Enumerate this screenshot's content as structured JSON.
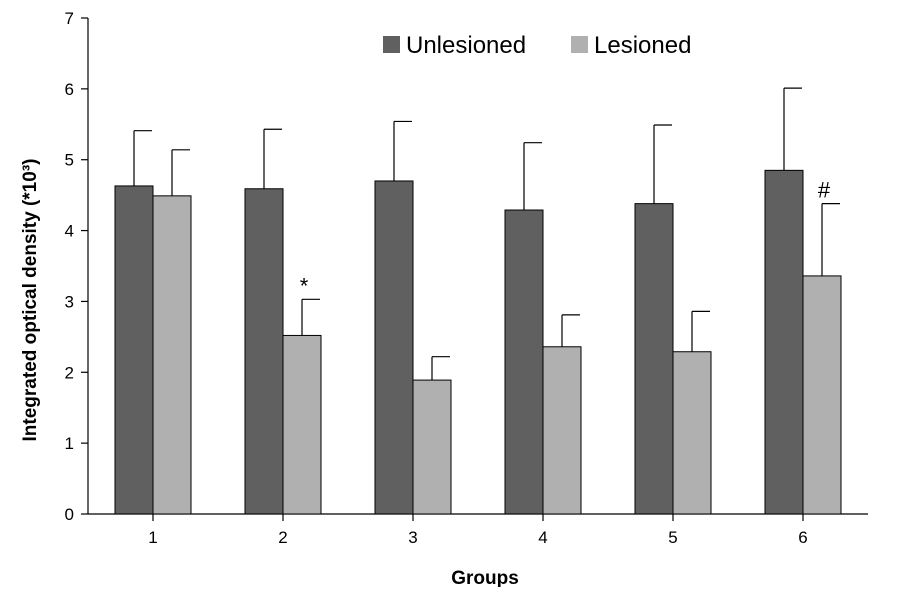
{
  "chart_data": {
    "type": "bar",
    "title": "",
    "xlabel": "Groups",
    "ylabel": "Integrated optical density (*10³)",
    "ylim": [
      0,
      7
    ],
    "yticks": [
      "0",
      "1",
      "2",
      "3",
      "4",
      "5",
      "6",
      "7"
    ],
    "categories": [
      "1",
      "2",
      "3",
      "4",
      "5",
      "6"
    ],
    "series": [
      {
        "name": "Unlesioned",
        "color": "#606060",
        "values": [
          4.63,
          4.59,
          4.7,
          4.29,
          4.38,
          4.85
        ],
        "error": [
          0.78,
          0.84,
          0.84,
          0.95,
          1.11,
          1.16
        ]
      },
      {
        "name": "Lesioned",
        "color": "#b0b0b0",
        "values": [
          4.49,
          2.52,
          1.89,
          2.36,
          2.29,
          3.36
        ],
        "error": [
          0.65,
          0.51,
          0.33,
          0.45,
          0.57,
          1.02
        ]
      }
    ],
    "annotations": [
      {
        "series": 1,
        "category": 1,
        "text": "*"
      },
      {
        "series": 1,
        "category": 5,
        "text": "#"
      }
    ],
    "legend_position": "top-right",
    "grid": false
  }
}
